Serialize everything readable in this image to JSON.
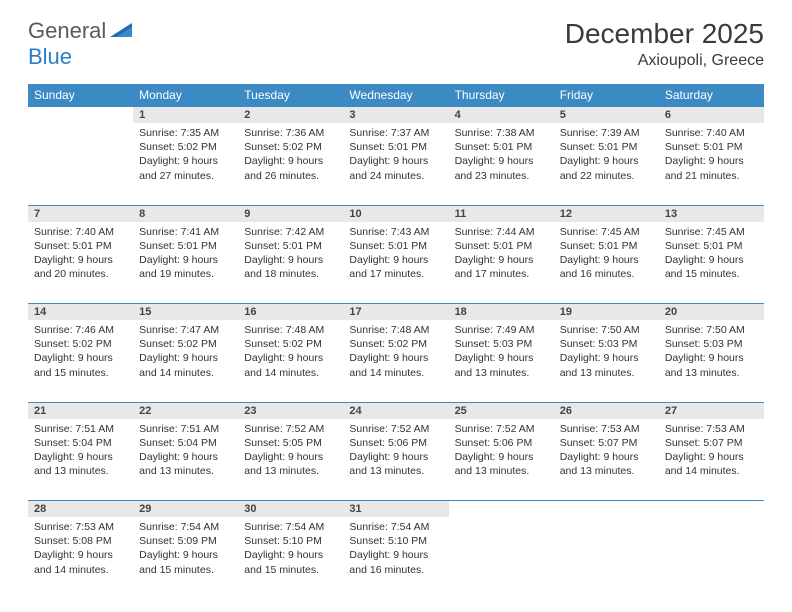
{
  "brand": {
    "part1": "General",
    "part2": "Blue"
  },
  "title": "December 2025",
  "location": "Axioupoli, Greece",
  "colors": {
    "header_bg": "#3b8ac4",
    "header_text": "#ffffff",
    "daynum_bg": "#e8e8e8",
    "row_border": "#3b8ac4",
    "brand_gray": "#5a5a5a",
    "brand_blue": "#2a7fc8"
  },
  "weekdays": [
    "Sunday",
    "Monday",
    "Tuesday",
    "Wednesday",
    "Thursday",
    "Friday",
    "Saturday"
  ],
  "weeks": [
    [
      null,
      {
        "n": "1",
        "sr": "7:35 AM",
        "ss": "5:02 PM",
        "dl": "9 hours and 27 minutes."
      },
      {
        "n": "2",
        "sr": "7:36 AM",
        "ss": "5:02 PM",
        "dl": "9 hours and 26 minutes."
      },
      {
        "n": "3",
        "sr": "7:37 AM",
        "ss": "5:01 PM",
        "dl": "9 hours and 24 minutes."
      },
      {
        "n": "4",
        "sr": "7:38 AM",
        "ss": "5:01 PM",
        "dl": "9 hours and 23 minutes."
      },
      {
        "n": "5",
        "sr": "7:39 AM",
        "ss": "5:01 PM",
        "dl": "9 hours and 22 minutes."
      },
      {
        "n": "6",
        "sr": "7:40 AM",
        "ss": "5:01 PM",
        "dl": "9 hours and 21 minutes."
      }
    ],
    [
      {
        "n": "7",
        "sr": "7:40 AM",
        "ss": "5:01 PM",
        "dl": "9 hours and 20 minutes."
      },
      {
        "n": "8",
        "sr": "7:41 AM",
        "ss": "5:01 PM",
        "dl": "9 hours and 19 minutes."
      },
      {
        "n": "9",
        "sr": "7:42 AM",
        "ss": "5:01 PM",
        "dl": "9 hours and 18 minutes."
      },
      {
        "n": "10",
        "sr": "7:43 AM",
        "ss": "5:01 PM",
        "dl": "9 hours and 17 minutes."
      },
      {
        "n": "11",
        "sr": "7:44 AM",
        "ss": "5:01 PM",
        "dl": "9 hours and 17 minutes."
      },
      {
        "n": "12",
        "sr": "7:45 AM",
        "ss": "5:01 PM",
        "dl": "9 hours and 16 minutes."
      },
      {
        "n": "13",
        "sr": "7:45 AM",
        "ss": "5:01 PM",
        "dl": "9 hours and 15 minutes."
      }
    ],
    [
      {
        "n": "14",
        "sr": "7:46 AM",
        "ss": "5:02 PM",
        "dl": "9 hours and 15 minutes."
      },
      {
        "n": "15",
        "sr": "7:47 AM",
        "ss": "5:02 PM",
        "dl": "9 hours and 14 minutes."
      },
      {
        "n": "16",
        "sr": "7:48 AM",
        "ss": "5:02 PM",
        "dl": "9 hours and 14 minutes."
      },
      {
        "n": "17",
        "sr": "7:48 AM",
        "ss": "5:02 PM",
        "dl": "9 hours and 14 minutes."
      },
      {
        "n": "18",
        "sr": "7:49 AM",
        "ss": "5:03 PM",
        "dl": "9 hours and 13 minutes."
      },
      {
        "n": "19",
        "sr": "7:50 AM",
        "ss": "5:03 PM",
        "dl": "9 hours and 13 minutes."
      },
      {
        "n": "20",
        "sr": "7:50 AM",
        "ss": "5:03 PM",
        "dl": "9 hours and 13 minutes."
      }
    ],
    [
      {
        "n": "21",
        "sr": "7:51 AM",
        "ss": "5:04 PM",
        "dl": "9 hours and 13 minutes."
      },
      {
        "n": "22",
        "sr": "7:51 AM",
        "ss": "5:04 PM",
        "dl": "9 hours and 13 minutes."
      },
      {
        "n": "23",
        "sr": "7:52 AM",
        "ss": "5:05 PM",
        "dl": "9 hours and 13 minutes."
      },
      {
        "n": "24",
        "sr": "7:52 AM",
        "ss": "5:06 PM",
        "dl": "9 hours and 13 minutes."
      },
      {
        "n": "25",
        "sr": "7:52 AM",
        "ss": "5:06 PM",
        "dl": "9 hours and 13 minutes."
      },
      {
        "n": "26",
        "sr": "7:53 AM",
        "ss": "5:07 PM",
        "dl": "9 hours and 13 minutes."
      },
      {
        "n": "27",
        "sr": "7:53 AM",
        "ss": "5:07 PM",
        "dl": "9 hours and 14 minutes."
      }
    ],
    [
      {
        "n": "28",
        "sr": "7:53 AM",
        "ss": "5:08 PM",
        "dl": "9 hours and 14 minutes."
      },
      {
        "n": "29",
        "sr": "7:54 AM",
        "ss": "5:09 PM",
        "dl": "9 hours and 15 minutes."
      },
      {
        "n": "30",
        "sr": "7:54 AM",
        "ss": "5:10 PM",
        "dl": "9 hours and 15 minutes."
      },
      {
        "n": "31",
        "sr": "7:54 AM",
        "ss": "5:10 PM",
        "dl": "9 hours and 16 minutes."
      },
      null,
      null,
      null
    ]
  ],
  "labels": {
    "sunrise": "Sunrise:",
    "sunset": "Sunset:",
    "daylight": "Daylight:"
  }
}
